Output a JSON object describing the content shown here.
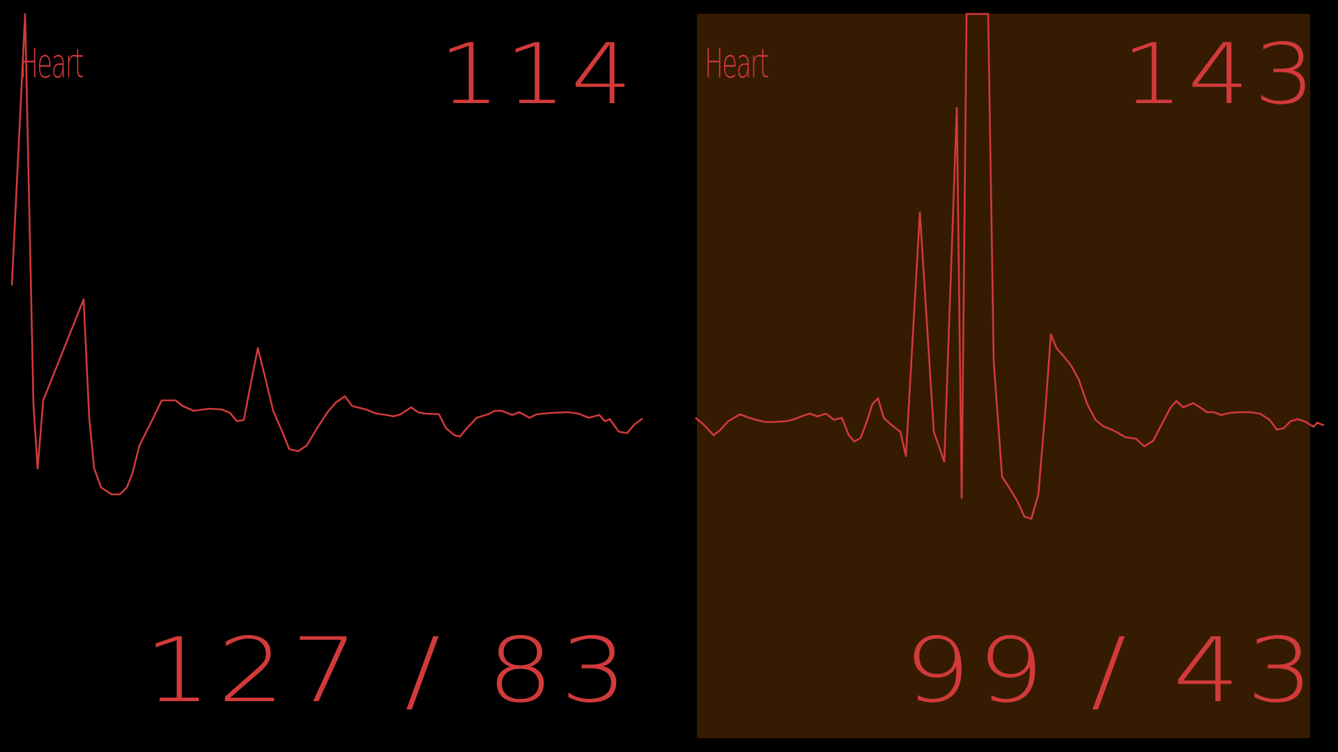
{
  "colors": {
    "background": "#000000",
    "right_panel_bg": "#361b03",
    "accent": "#d23a3a"
  },
  "monitors": [
    {
      "label": "Heart",
      "heart_rate": "114",
      "blood_pressure": "127 / 83"
    },
    {
      "label": "Heart",
      "heart_rate": "143",
      "blood_pressure": "99 / 43"
    }
  ]
}
